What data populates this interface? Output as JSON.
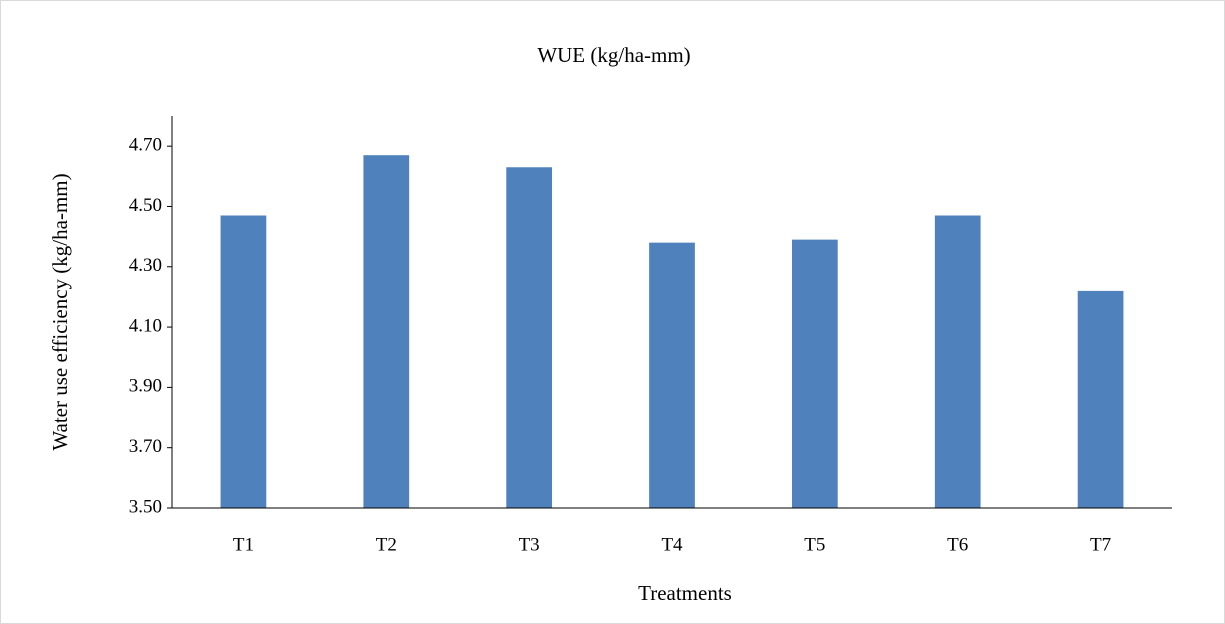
{
  "chart_data": {
    "type": "bar",
    "title": "WUE (kg/ha-mm)",
    "x_label": "Treatments",
    "y_label": "Water use efficiency (kg/ha-mm)",
    "categories": [
      "T1",
      "T2",
      "T3",
      "T4",
      "T5",
      "T6",
      "T7"
    ],
    "values": [
      4.47,
      4.67,
      4.63,
      4.38,
      4.39,
      4.47,
      4.22
    ],
    "color": "#4f81bd",
    "ylim": [
      3.5,
      4.8
    ],
    "yticks": [
      {
        "value": 3.5,
        "label": "3.50"
      },
      {
        "value": 3.7,
        "label": "3.70"
      },
      {
        "value": 3.9,
        "label": "3.90"
      },
      {
        "value": 4.1,
        "label": "4.10"
      },
      {
        "value": 4.3,
        "label": "4.30"
      },
      {
        "value": 4.5,
        "label": "4.50"
      },
      {
        "value": 4.7,
        "label": "4.70"
      }
    ],
    "grid": false
  }
}
